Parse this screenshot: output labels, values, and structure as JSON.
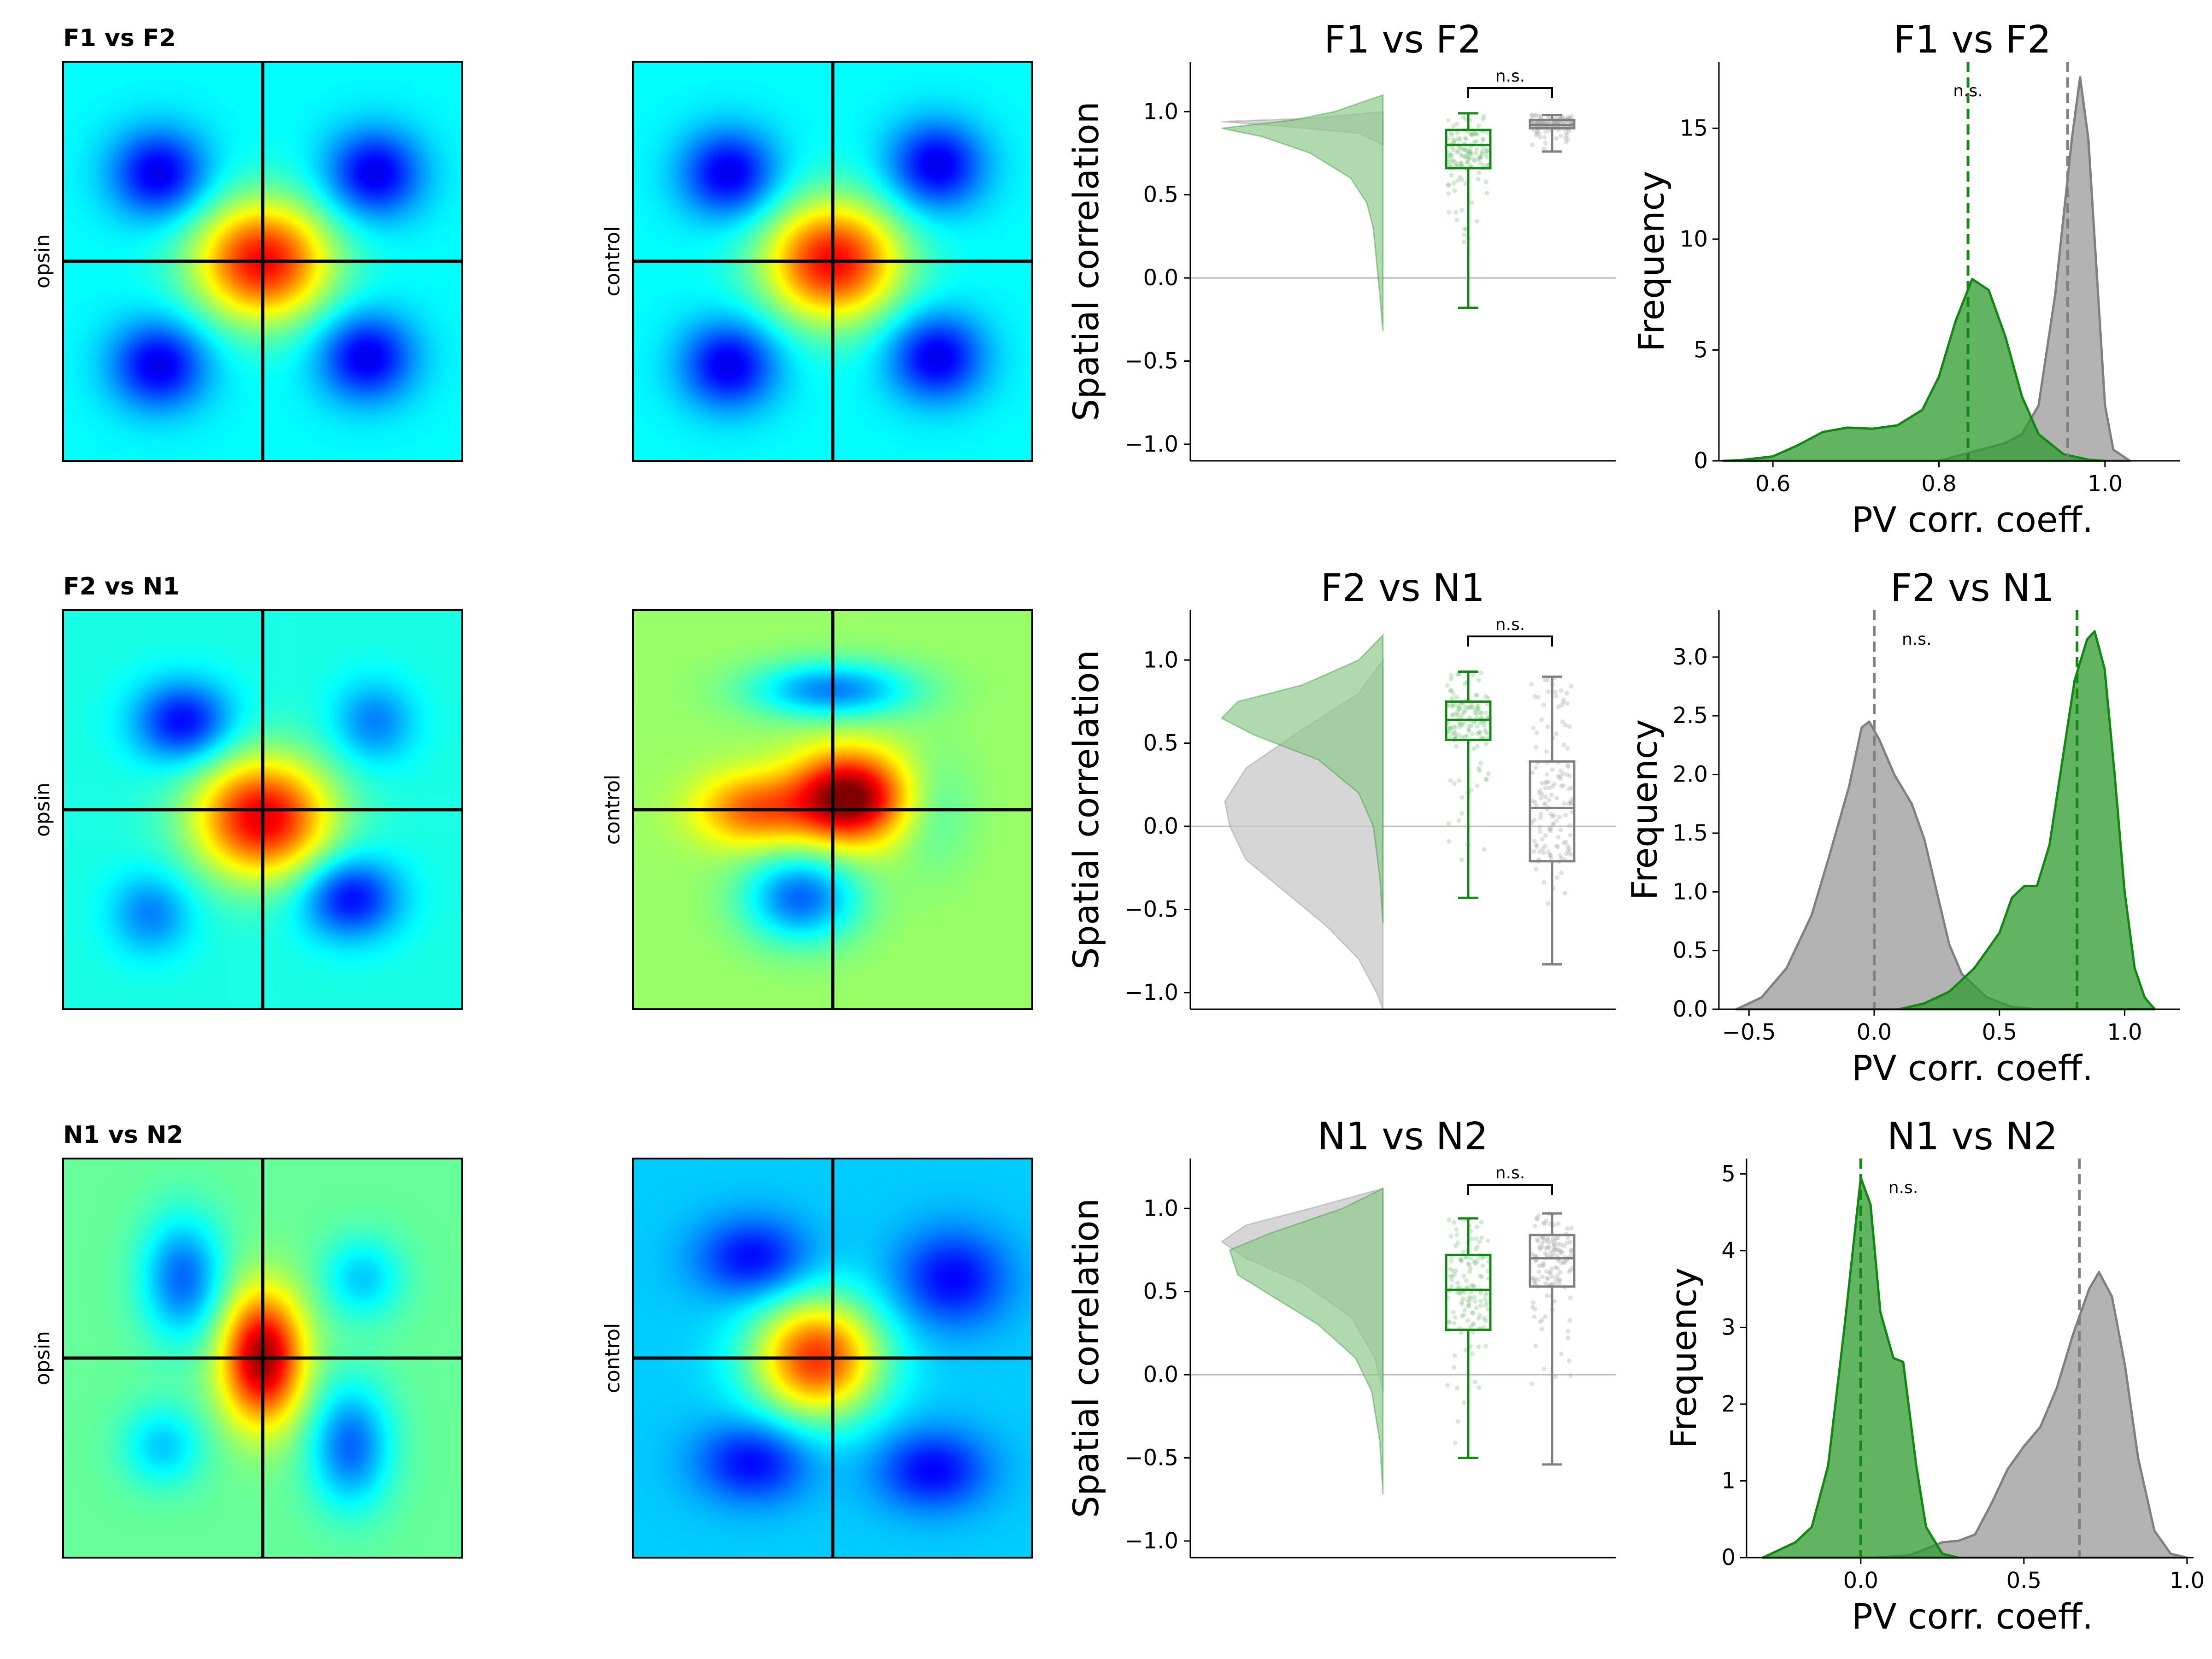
{
  "figure": {
    "rows": [
      {
        "label": "F1 vs F2",
        "map_opsin_label": "opsin",
        "map_control_label": "control",
        "opsin_map": {
          "blobs": [
            [
              0.5,
              0.5,
              0.17,
              0.15,
              1.0
            ],
            [
              0.24,
              0.28,
              0.12,
              0.11,
              -0.55
            ],
            [
              0.78,
              0.28,
              0.12,
              0.11,
              -0.55
            ],
            [
              0.24,
              0.76,
              0.12,
              0.11,
              -0.55
            ],
            [
              0.76,
              0.74,
              0.12,
              0.11,
              -0.55
            ]
          ],
          "baseline": -0.25
        },
        "control_map": {
          "blobs": [
            [
              0.5,
              0.5,
              0.17,
              0.15,
              1.0
            ],
            [
              0.24,
              0.28,
              0.12,
              0.11,
              -0.55
            ],
            [
              0.76,
              0.26,
              0.12,
              0.11,
              -0.55
            ],
            [
              0.24,
              0.76,
              0.12,
              0.11,
              -0.55
            ],
            [
              0.76,
              0.74,
              0.12,
              0.11,
              -0.55
            ]
          ],
          "baseline": -0.25
        },
        "box_title": "F1 vs F2",
        "hist_title": "F1 vs F2"
      },
      {
        "label": "F2 vs N1",
        "map_opsin_label": "opsin",
        "map_control_label": "control",
        "opsin_map": {
          "blobs": [
            [
              0.5,
              0.52,
              0.17,
              0.15,
              1.0
            ],
            [
              0.3,
              0.28,
              0.12,
              0.1,
              -0.55
            ],
            [
              0.72,
              0.72,
              0.12,
              0.1,
              -0.55
            ],
            [
              0.78,
              0.28,
              0.1,
              0.1,
              -0.3
            ],
            [
              0.22,
              0.76,
              0.1,
              0.1,
              -0.3
            ]
          ],
          "baseline": -0.2
        },
        "control_map": {
          "blobs": [
            [
              0.54,
              0.47,
              0.14,
              0.11,
              1.0
            ],
            [
              0.3,
              0.5,
              0.14,
              0.09,
              0.5
            ],
            [
              0.5,
              0.2,
              0.2,
              0.07,
              -0.55
            ],
            [
              0.42,
              0.72,
              0.14,
              0.11,
              -0.6
            ],
            [
              0.75,
              0.5,
              0.1,
              0.15,
              -0.15
            ]
          ],
          "baseline": 0.05
        },
        "box_title": "F2 vs N1",
        "hist_title": "F2 vs N1"
      },
      {
        "label": "N1 vs N2",
        "map_opsin_label": "opsin",
        "map_control_label": "control",
        "opsin_map": {
          "blobs": [
            [
              0.5,
              0.5,
              0.1,
              0.16,
              1.0
            ],
            [
              0.3,
              0.3,
              0.1,
              0.15,
              -0.5
            ],
            [
              0.72,
              0.72,
              0.1,
              0.15,
              -0.5
            ],
            [
              0.75,
              0.3,
              0.1,
              0.1,
              -0.3
            ],
            [
              0.25,
              0.72,
              0.1,
              0.1,
              -0.3
            ]
          ],
          "baseline": -0.05
        },
        "control_map": {
          "blobs": [
            [
              0.46,
              0.5,
              0.16,
              0.15,
              1.0
            ],
            [
              0.3,
              0.25,
              0.14,
              0.1,
              -0.4
            ],
            [
              0.8,
              0.3,
              0.14,
              0.12,
              -0.4
            ],
            [
              0.3,
              0.76,
              0.14,
              0.1,
              -0.4
            ],
            [
              0.75,
              0.78,
              0.14,
              0.1,
              -0.4
            ]
          ],
          "baseline": -0.35
        },
        "box_title": "N1 vs N2",
        "hist_title": "N1 vs N2"
      }
    ],
    "sig_label": "n.s.",
    "colors": {
      "opsin": "#118811",
      "opsin_fill": "#8fc98f",
      "control": "#808080",
      "control_fill": "#c8c8c8",
      "crosshair": "#000000",
      "zero_line": "#bbbbbb"
    }
  },
  "chart_data": [
    {
      "type": "box",
      "title": "F1 vs F2",
      "ylabel": "Spatial correlation",
      "ylim": [
        -1.1,
        1.3
      ],
      "yticks": [
        "1.0",
        "0.5",
        "0.0",
        "−0.5",
        "−1.0"
      ],
      "sig_label": "n.s.",
      "series": [
        {
          "name": "opsin",
          "min": -0.18,
          "q1": 0.66,
          "median": 0.8,
          "q3": 0.89,
          "max": 0.99
        },
        {
          "name": "control",
          "min": 0.76,
          "q1": 0.9,
          "median": 0.92,
          "q3": 0.95,
          "max": 0.98
        }
      ],
      "violin": {
        "opsin": [
          [
            1.1,
            0.0
          ],
          [
            1.0,
            0.3
          ],
          [
            0.95,
            0.55
          ],
          [
            0.9,
            1.0
          ],
          [
            0.85,
            0.75
          ],
          [
            0.75,
            0.45
          ],
          [
            0.6,
            0.2
          ],
          [
            0.45,
            0.1
          ],
          [
            0.3,
            0.06
          ],
          [
            0.1,
            0.04
          ],
          [
            -0.1,
            0.02
          ],
          [
            -0.32,
            0.0
          ]
        ],
        "control": [
          [
            1.0,
            0.0
          ],
          [
            0.96,
            0.45
          ],
          [
            0.94,
            1.0
          ],
          [
            0.91,
            0.6
          ],
          [
            0.87,
            0.15
          ],
          [
            0.8,
            0.0
          ]
        ]
      }
    },
    {
      "type": "histogram",
      "title": "F1 vs F2",
      "xlabel": "PV corr. coeff.",
      "ylabel": "Frequency",
      "xlim": [
        0.535,
        1.09
      ],
      "ylim": [
        0,
        18
      ],
      "xticks": [
        "0.6",
        "0.8",
        "1.0"
      ],
      "yticks": [
        "0",
        "5",
        "10",
        "15"
      ],
      "sig_label": "n.s.",
      "series": [
        {
          "name": "opsin",
          "points": [
            [
              0.54,
              0
            ],
            [
              0.56,
              0.03
            ],
            [
              0.6,
              0.2
            ],
            [
              0.63,
              0.7
            ],
            [
              0.66,
              1.3
            ],
            [
              0.69,
              1.5
            ],
            [
              0.72,
              1.45
            ],
            [
              0.75,
              1.6
            ],
            [
              0.78,
              2.3
            ],
            [
              0.8,
              3.8
            ],
            [
              0.82,
              6.3
            ],
            [
              0.84,
              8.2
            ],
            [
              0.86,
              7.7
            ],
            [
              0.88,
              5.6
            ],
            [
              0.9,
              2.9
            ],
            [
              0.92,
              1.2
            ],
            [
              0.95,
              0.3
            ],
            [
              0.98,
              0.05
            ],
            [
              1.0,
              0
            ]
          ],
          "mean": 0.835
        },
        {
          "name": "control",
          "points": [
            [
              0.8,
              0
            ],
            [
              0.84,
              0.4
            ],
            [
              0.88,
              0.8
            ],
            [
              0.9,
              1.2
            ],
            [
              0.92,
              2.5
            ],
            [
              0.94,
              7.5
            ],
            [
              0.96,
              14.5
            ],
            [
              0.97,
              17.3
            ],
            [
              0.98,
              14.5
            ],
            [
              1.0,
              2.5
            ],
            [
              1.01,
              0.5
            ],
            [
              1.03,
              0
            ]
          ],
          "mean": 0.955
        }
      ]
    },
    {
      "type": "box",
      "title": "F2 vs N1",
      "ylabel": "Spatial correlation",
      "ylim": [
        -1.1,
        1.3
      ],
      "yticks": [
        "1.0",
        "0.5",
        "0.0",
        "−0.5",
        "−1.0"
      ],
      "sig_label": "n.s.",
      "series": [
        {
          "name": "opsin",
          "min": -0.43,
          "q1": 0.52,
          "median": 0.64,
          "q3": 0.75,
          "max": 0.93
        },
        {
          "name": "control",
          "min": -0.83,
          "q1": -0.21,
          "median": 0.11,
          "q3": 0.39,
          "max": 0.9
        }
      ],
      "violin": {
        "opsin": [
          [
            1.15,
            0.0
          ],
          [
            1.0,
            0.15
          ],
          [
            0.85,
            0.5
          ],
          [
            0.75,
            0.9
          ],
          [
            0.65,
            1.0
          ],
          [
            0.55,
            0.8
          ],
          [
            0.4,
            0.4
          ],
          [
            0.2,
            0.15
          ],
          [
            0.0,
            0.06
          ],
          [
            -0.3,
            0.02
          ],
          [
            -0.58,
            0.0
          ]
        ],
        "control": [
          [
            1.0,
            0.0
          ],
          [
            0.8,
            0.15
          ],
          [
            0.55,
            0.55
          ],
          [
            0.35,
            0.85
          ],
          [
            0.15,
            0.98
          ],
          [
            0.0,
            0.95
          ],
          [
            -0.2,
            0.85
          ],
          [
            -0.4,
            0.6
          ],
          [
            -0.6,
            0.35
          ],
          [
            -0.8,
            0.15
          ],
          [
            -1.0,
            0.04
          ],
          [
            -1.1,
            0.0
          ]
        ]
      }
    },
    {
      "type": "histogram",
      "title": "F2 vs N1",
      "xlabel": "PV corr. coeff.",
      "ylabel": "Frequency",
      "xlim": [
        -0.62,
        1.22
      ],
      "ylim": [
        0,
        3.4
      ],
      "xticks": [
        "−0.5",
        "0.0",
        "0.5",
        "1.0"
      ],
      "yticks": [
        "0.0",
        "0.5",
        "1.0",
        "1.5",
        "2.0",
        "2.5",
        "3.0"
      ],
      "sig_label": "n.s.",
      "series": [
        {
          "name": "opsin",
          "points": [
            [
              0.1,
              0
            ],
            [
              0.2,
              0.05
            ],
            [
              0.3,
              0.15
            ],
            [
              0.4,
              0.35
            ],
            [
              0.5,
              0.65
            ],
            [
              0.55,
              0.95
            ],
            [
              0.6,
              1.05
            ],
            [
              0.65,
              1.05
            ],
            [
              0.7,
              1.4
            ],
            [
              0.75,
              2.1
            ],
            [
              0.8,
              2.8
            ],
            [
              0.85,
              3.15
            ],
            [
              0.88,
              3.22
            ],
            [
              0.92,
              2.9
            ],
            [
              0.96,
              2.0
            ],
            [
              1.0,
              1.0
            ],
            [
              1.04,
              0.35
            ],
            [
              1.08,
              0.1
            ],
            [
              1.12,
              0
            ]
          ],
          "mean": 0.81
        },
        {
          "name": "control",
          "points": [
            [
              -0.55,
              0
            ],
            [
              -0.45,
              0.1
            ],
            [
              -0.35,
              0.35
            ],
            [
              -0.25,
              0.8
            ],
            [
              -0.18,
              1.3
            ],
            [
              -0.1,
              1.9
            ],
            [
              -0.05,
              2.4
            ],
            [
              -0.02,
              2.45
            ],
            [
              0.02,
              2.3
            ],
            [
              0.08,
              2.0
            ],
            [
              0.15,
              1.75
            ],
            [
              0.2,
              1.45
            ],
            [
              0.25,
              1.0
            ],
            [
              0.3,
              0.55
            ],
            [
              0.35,
              0.3
            ],
            [
              0.45,
              0.1
            ],
            [
              0.55,
              0.02
            ],
            [
              0.65,
              0
            ]
          ],
          "mean": 0.0
        }
      ]
    },
    {
      "type": "box",
      "title": "N1 vs N2",
      "ylabel": "Spatial correlation",
      "ylim": [
        -1.1,
        1.3
      ],
      "yticks": [
        "1.0",
        "0.5",
        "0.0",
        "−0.5",
        "−1.0"
      ],
      "sig_label": "n.s.",
      "series": [
        {
          "name": "opsin",
          "min": -0.5,
          "q1": 0.27,
          "median": 0.51,
          "q3": 0.72,
          "max": 0.94
        },
        {
          "name": "control",
          "min": -0.54,
          "q1": 0.53,
          "median": 0.7,
          "q3": 0.84,
          "max": 0.97
        }
      ],
      "violin": {
        "opsin": [
          [
            1.12,
            0.0
          ],
          [
            1.0,
            0.25
          ],
          [
            0.85,
            0.7
          ],
          [
            0.75,
            0.95
          ],
          [
            0.6,
            0.9
          ],
          [
            0.45,
            0.65
          ],
          [
            0.3,
            0.4
          ],
          [
            0.1,
            0.17
          ],
          [
            -0.1,
            0.07
          ],
          [
            -0.4,
            0.02
          ],
          [
            -0.72,
            0.0
          ]
        ],
        "control": [
          [
            1.12,
            0.0
          ],
          [
            1.0,
            0.45
          ],
          [
            0.9,
            0.85
          ],
          [
            0.8,
            1.0
          ],
          [
            0.7,
            0.85
          ],
          [
            0.55,
            0.5
          ],
          [
            0.35,
            0.2
          ],
          [
            0.1,
            0.05
          ],
          [
            -0.1,
            0.0
          ]
        ]
      }
    },
    {
      "type": "histogram",
      "title": "N1 vs N2",
      "xlabel": "PV corr. coeff.",
      "ylabel": "Frequency",
      "xlim": [
        -0.35,
        1.02
      ],
      "ylim": [
        0,
        5.2
      ],
      "xticks": [
        "0.0",
        "0.5",
        "1.0"
      ],
      "yticks": [
        "0",
        "1",
        "2",
        "3",
        "4",
        "5"
      ],
      "sig_label": "n.s.",
      "series": [
        {
          "name": "opsin",
          "points": [
            [
              -0.3,
              0
            ],
            [
              -0.25,
              0.1
            ],
            [
              -0.2,
              0.2
            ],
            [
              -0.15,
              0.4
            ],
            [
              -0.1,
              1.2
            ],
            [
              -0.05,
              3.0
            ],
            [
              0.0,
              4.95
            ],
            [
              0.03,
              4.6
            ],
            [
              0.06,
              3.2
            ],
            [
              0.1,
              2.6
            ],
            [
              0.13,
              2.55
            ],
            [
              0.17,
              1.2
            ],
            [
              0.2,
              0.4
            ],
            [
              0.25,
              0.05
            ],
            [
              0.3,
              0
            ]
          ],
          "mean": 0.0
        },
        {
          "name": "control",
          "points": [
            [
              0.05,
              0
            ],
            [
              0.15,
              0.03
            ],
            [
              0.25,
              0.2
            ],
            [
              0.3,
              0.22
            ],
            [
              0.35,
              0.3
            ],
            [
              0.4,
              0.7
            ],
            [
              0.45,
              1.15
            ],
            [
              0.5,
              1.45
            ],
            [
              0.55,
              1.7
            ],
            [
              0.6,
              2.2
            ],
            [
              0.65,
              2.9
            ],
            [
              0.7,
              3.5
            ],
            [
              0.73,
              3.72
            ],
            [
              0.77,
              3.4
            ],
            [
              0.81,
              2.5
            ],
            [
              0.85,
              1.3
            ],
            [
              0.9,
              0.35
            ],
            [
              0.95,
              0.05
            ],
            [
              1.0,
              0
            ]
          ],
          "mean": 0.67
        }
      ]
    }
  ]
}
